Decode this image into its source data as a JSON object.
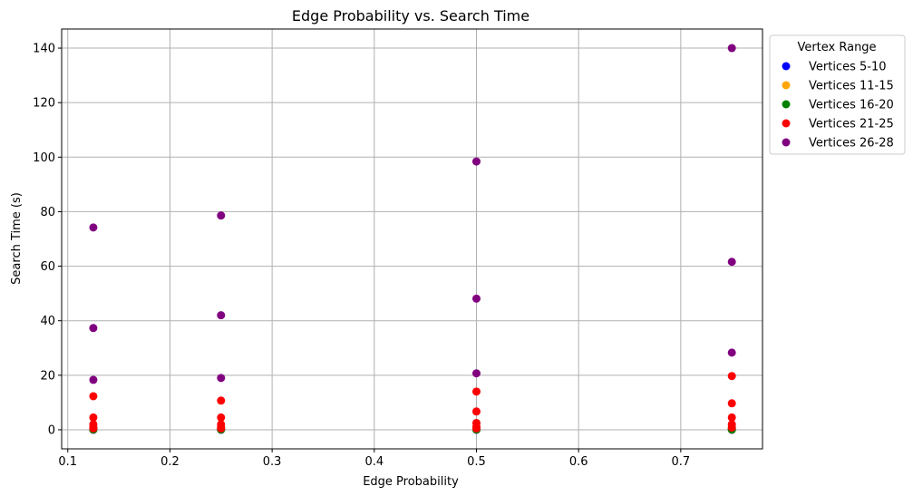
{
  "chart_data": {
    "type": "scatter",
    "title": "Edge Probability vs. Search Time",
    "xlabel": "Edge Probability",
    "ylabel": "Search Time (s)",
    "xlim": [
      0.094,
      0.78
    ],
    "ylim": [
      -7,
      147
    ],
    "x_ticks": [
      "0.1",
      "0.2",
      "0.3",
      "0.4",
      "0.5",
      "0.6",
      "0.7"
    ],
    "y_ticks": [
      "0",
      "20",
      "40",
      "60",
      "80",
      "100",
      "120",
      "140"
    ],
    "grid": true,
    "legend": {
      "title": "Vertex Range",
      "placement": "outside-top-right"
    },
    "series": [
      {
        "name": "Vertices 5-10",
        "color": "#0000ff",
        "points": [
          [
            0.125,
            0.0
          ],
          [
            0.125,
            0.02
          ],
          [
            0.25,
            0.0
          ],
          [
            0.25,
            0.02
          ],
          [
            0.5,
            0.0
          ],
          [
            0.5,
            0.02
          ],
          [
            0.75,
            0.0
          ],
          [
            0.75,
            0.02
          ]
        ]
      },
      {
        "name": "Vertices 11-15",
        "color": "#ffa500",
        "points": [
          [
            0.125,
            0.05
          ],
          [
            0.125,
            0.1
          ],
          [
            0.25,
            0.05
          ],
          [
            0.25,
            0.1
          ],
          [
            0.5,
            0.05
          ],
          [
            0.5,
            0.1
          ],
          [
            0.75,
            0.05
          ],
          [
            0.75,
            0.1
          ]
        ]
      },
      {
        "name": "Vertices 16-20",
        "color": "#008000",
        "points": [
          [
            0.125,
            0.1
          ],
          [
            0.125,
            0.3
          ],
          [
            0.25,
            0.1
          ],
          [
            0.25,
            0.3
          ],
          [
            0.5,
            0.1
          ],
          [
            0.5,
            0.3
          ],
          [
            0.75,
            0.1
          ],
          [
            0.75,
            0.3
          ]
        ]
      },
      {
        "name": "Vertices 21-25",
        "color": "#ff0000",
        "points": [
          [
            0.125,
            12.3
          ],
          [
            0.125,
            4.5
          ],
          [
            0.125,
            2.0
          ],
          [
            0.125,
            1.0
          ],
          [
            0.125,
            0.5
          ],
          [
            0.25,
            10.7
          ],
          [
            0.25,
            4.5
          ],
          [
            0.25,
            2.0
          ],
          [
            0.25,
            1.0
          ],
          [
            0.25,
            0.5
          ],
          [
            0.5,
            14.0
          ],
          [
            0.5,
            6.7
          ],
          [
            0.5,
            2.5
          ],
          [
            0.5,
            1.2
          ],
          [
            0.5,
            0.5
          ],
          [
            0.75,
            19.7
          ],
          [
            0.75,
            9.7
          ],
          [
            0.75,
            4.5
          ],
          [
            0.75,
            2.0
          ],
          [
            0.75,
            0.8
          ]
        ]
      },
      {
        "name": "Vertices 26-28",
        "color": "#800080",
        "points": [
          [
            0.125,
            74.2
          ],
          [
            0.125,
            37.3
          ],
          [
            0.125,
            18.3
          ],
          [
            0.25,
            78.6
          ],
          [
            0.25,
            42.0
          ],
          [
            0.25,
            19.0
          ],
          [
            0.5,
            98.4
          ],
          [
            0.5,
            48.1
          ],
          [
            0.5,
            20.7
          ],
          [
            0.75,
            140.0
          ],
          [
            0.75,
            61.6
          ],
          [
            0.75,
            28.3
          ]
        ]
      }
    ]
  }
}
